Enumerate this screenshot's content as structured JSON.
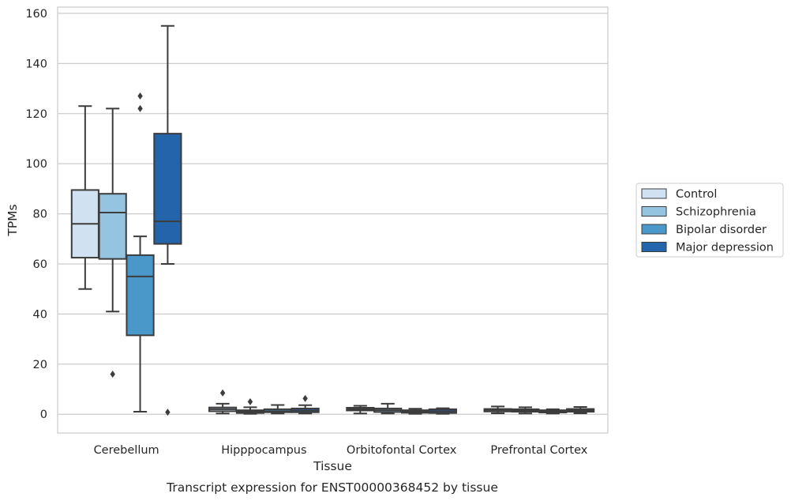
{
  "caption": "Transcript expression for ENST00000368452 by tissue",
  "chart_data": {
    "type": "box",
    "xlabel": "Tissue",
    "ylabel": "TPMs",
    "ylim": [
      -7.5,
      162.5
    ],
    "yticks": [
      0,
      20,
      40,
      60,
      80,
      100,
      120,
      140,
      160
    ],
    "categories": [
      "Cerebellum",
      "Hipppocampus",
      "Orbitofontal Cortex",
      "Prefrontal Cortex"
    ],
    "grid": "horizontal",
    "legend_position": "right",
    "series": [
      {
        "name": "Control",
        "color": "#d0e1f2",
        "boxes": [
          {
            "whislo": 50,
            "q1": 62.5,
            "med": 76,
            "q3": 89.5,
            "whishi": 123,
            "fliers": []
          },
          {
            "whislo": 0.3,
            "q1": 1.2,
            "med": 2.0,
            "q3": 2.7,
            "whishi": 4.2,
            "fliers": [
              8.5
            ]
          },
          {
            "whislo": 0.3,
            "q1": 1.5,
            "med": 2.0,
            "q3": 2.6,
            "whishi": 3.4,
            "fliers": []
          },
          {
            "whislo": 0.4,
            "q1": 1.1,
            "med": 1.7,
            "q3": 2.1,
            "whishi": 3.1,
            "fliers": []
          }
        ]
      },
      {
        "name": "Schizophrenia",
        "color": "#94c4df",
        "boxes": [
          {
            "whislo": 41,
            "q1": 62,
            "med": 80.5,
            "q3": 88,
            "whishi": 122,
            "fliers": [
              16
            ]
          },
          {
            "whislo": 0.2,
            "q1": 0.5,
            "med": 1.0,
            "q3": 1.6,
            "whishi": 2.8,
            "fliers": [
              5.0
            ]
          },
          {
            "whislo": 0.3,
            "q1": 0.9,
            "med": 1.6,
            "q3": 2.3,
            "whishi": 4.2,
            "fliers": []
          },
          {
            "whislo": 0.3,
            "q1": 1.0,
            "med": 1.5,
            "q3": 2.0,
            "whishi": 2.8,
            "fliers": []
          }
        ]
      },
      {
        "name": "Bipolar disorder",
        "color": "#4a98c9",
        "boxes": [
          {
            "whislo": 1,
            "q1": 31.5,
            "med": 55,
            "q3": 63.5,
            "whishi": 71,
            "fliers": [
              127,
              122
            ]
          },
          {
            "whislo": 0.3,
            "q1": 0.8,
            "med": 1.2,
            "q3": 2.0,
            "whishi": 3.7,
            "fliers": []
          },
          {
            "whislo": 0.2,
            "q1": 0.6,
            "med": 1.0,
            "q3": 1.6,
            "whishi": 2.2,
            "fliers": []
          },
          {
            "whislo": 0.3,
            "q1": 0.7,
            "med": 1.1,
            "q3": 1.6,
            "whishi": 2.0,
            "fliers": []
          }
        ]
      },
      {
        "name": "Major depression",
        "color": "#2464ab",
        "boxes": [
          {
            "whislo": 60,
            "q1": 68,
            "med": 77,
            "q3": 112,
            "whishi": 155,
            "fliers": [
              0.8
            ]
          },
          {
            "whislo": 0.3,
            "q1": 0.8,
            "med": 1.5,
            "q3": 2.3,
            "whishi": 3.6,
            "fliers": [
              6.3
            ]
          },
          {
            "whislo": 0.2,
            "q1": 0.5,
            "med": 1.2,
            "q3": 2.0,
            "whishi": 2.4,
            "fliers": []
          },
          {
            "whislo": 0.4,
            "q1": 1.0,
            "med": 1.6,
            "q3": 2.1,
            "whishi": 2.9,
            "fliers": []
          }
        ]
      }
    ]
  }
}
